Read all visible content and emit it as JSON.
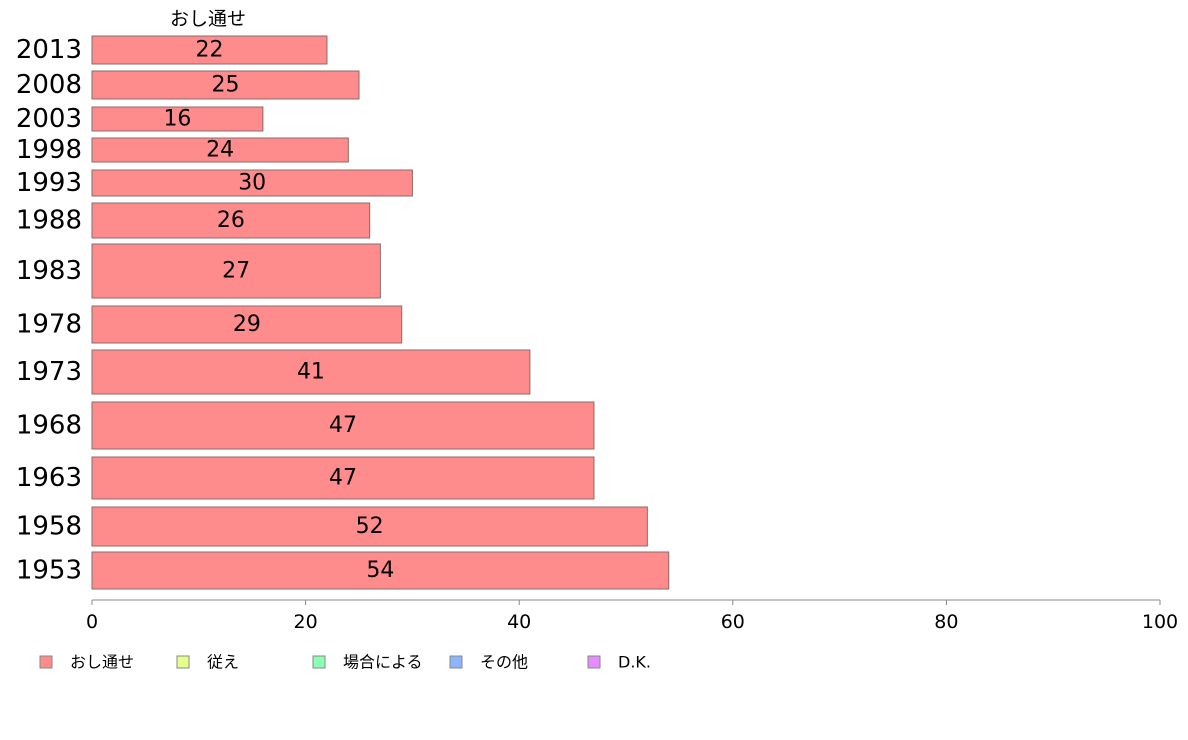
{
  "chart_data": {
    "type": "bar",
    "orientation": "horizontal",
    "title": "おし通せ",
    "categories": [
      "2013",
      "2008",
      "2003",
      "1998",
      "1993",
      "1988",
      "1983",
      "1978",
      "1973",
      "1968",
      "1963",
      "1958",
      "1953"
    ],
    "values": [
      22,
      25,
      16,
      24,
      30,
      26,
      27,
      29,
      41,
      47,
      47,
      52,
      54
    ],
    "value_label_texts": [
      "22",
      "25",
      "16",
      "24",
      "30",
      "26",
      "27",
      "29",
      "41",
      "47",
      "47",
      "52",
      "54"
    ],
    "xlim": [
      0,
      100
    ],
    "xticks": [
      "0",
      "20",
      "40",
      "60",
      "80",
      "100"
    ],
    "xlabel": "",
    "ylabel": "",
    "grid": false,
    "legend": {
      "placement": "bottom-left",
      "items": [
        {
          "label": "おし通せ",
          "color": "#ff8c8c"
        },
        {
          "label": "従え",
          "color": "#e6ff8c"
        },
        {
          "label": "場合による",
          "color": "#8cffb4"
        },
        {
          "label": "その他",
          "color": "#8cb4ff"
        },
        {
          "label": "D.K.",
          "color": "#e68cff"
        }
      ]
    },
    "colors": {
      "bar_fill": "#ff8c8c",
      "bar_stroke": "#8a6a6a",
      "axis": "#888888",
      "text": "#000000"
    }
  }
}
